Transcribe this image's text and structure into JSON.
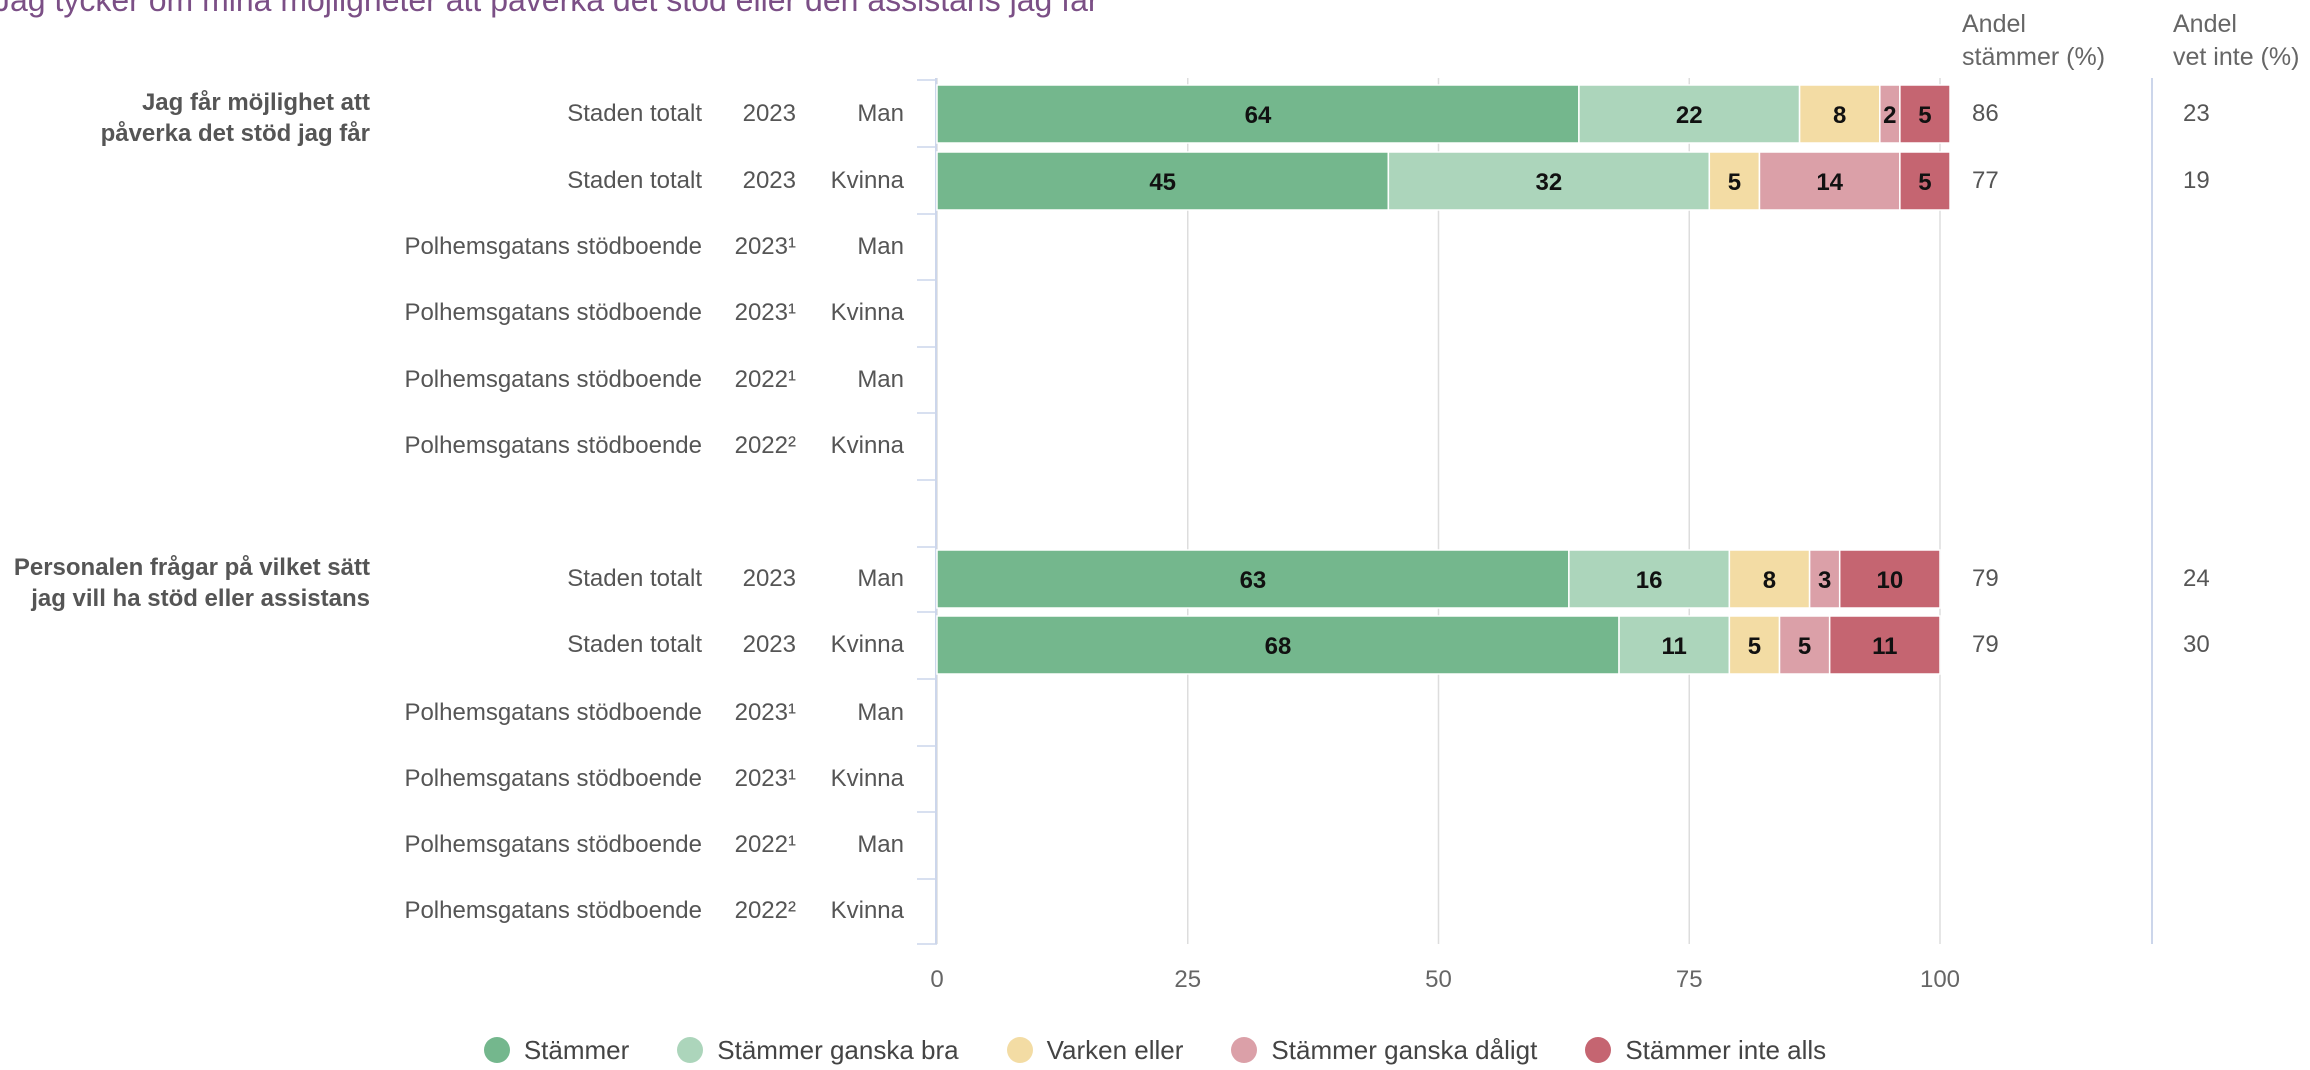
{
  "title": "Jag tycker om mina möjligheter att påverka det stöd eller den assistans jag får",
  "column_headers": {
    "stammer": [
      "Andel",
      "stämmer (%)"
    ],
    "vet_inte": [
      "Andel",
      "vet inte (%)"
    ]
  },
  "legend": [
    {
      "label": "Stämmer",
      "color": "#74b78d"
    },
    {
      "label": "Stämmer ganska bra",
      "color": "#acd5bb"
    },
    {
      "label": "Varken eller",
      "color": "#f3dca4"
    },
    {
      "label": "Stämmer ganska dåligt",
      "color": "#dba0a8"
    },
    {
      "label": "Stämmer inte alls",
      "color": "#c56571"
    }
  ],
  "chart_data": {
    "type": "bar",
    "orientation": "horizontal",
    "stacked": true,
    "xlim": [
      0,
      100
    ],
    "x_ticks": [
      "0",
      "25",
      "50",
      "75",
      "100"
    ],
    "series_names": [
      "Stämmer",
      "Stämmer ganska bra",
      "Varken eller",
      "Stämmer ganska dåligt",
      "Stämmer inte alls"
    ],
    "groups": [
      {
        "question": [
          "Jag får möjlighet att",
          "påverka det stöd jag får"
        ],
        "rows": [
          {
            "unit": "Staden totalt",
            "year": "2023",
            "gender": "Man",
            "values": [
              64,
              22,
              8,
              2,
              5
            ],
            "andel_stammer": "86",
            "andel_vet_inte": "23"
          },
          {
            "unit": "Staden totalt",
            "year": "2023",
            "gender": "Kvinna",
            "values": [
              45,
              32,
              5,
              14,
              5
            ],
            "andel_stammer": "77",
            "andel_vet_inte": "19"
          },
          {
            "unit": "Polhemsgatans stödboende",
            "year": "2023¹",
            "gender": "Man",
            "values": null,
            "andel_stammer": "",
            "andel_vet_inte": ""
          },
          {
            "unit": "Polhemsgatans stödboende",
            "year": "2023¹",
            "gender": "Kvinna",
            "values": null,
            "andel_stammer": "",
            "andel_vet_inte": ""
          },
          {
            "unit": "Polhemsgatans stödboende",
            "year": "2022¹",
            "gender": "Man",
            "values": null,
            "andel_stammer": "",
            "andel_vet_inte": ""
          },
          {
            "unit": "Polhemsgatans stödboende",
            "year": "2022²",
            "gender": "Kvinna",
            "values": null,
            "andel_stammer": "",
            "andel_vet_inte": ""
          }
        ]
      },
      {
        "question": [
          "Personalen frågar på vilket sätt",
          "jag vill ha stöd eller assistans"
        ],
        "rows": [
          {
            "unit": "Staden totalt",
            "year": "2023",
            "gender": "Man",
            "values": [
              63,
              16,
              8,
              3,
              10
            ],
            "andel_stammer": "79",
            "andel_vet_inte": "24"
          },
          {
            "unit": "Staden totalt",
            "year": "2023",
            "gender": "Kvinna",
            "values": [
              68,
              11,
              5,
              5,
              11
            ],
            "andel_stammer": "79",
            "andel_vet_inte": "30"
          },
          {
            "unit": "Polhemsgatans stödboende",
            "year": "2023¹",
            "gender": "Man",
            "values": null,
            "andel_stammer": "",
            "andel_vet_inte": ""
          },
          {
            "unit": "Polhemsgatans stödboende",
            "year": "2023¹",
            "gender": "Kvinna",
            "values": null,
            "andel_stammer": "",
            "andel_vet_inte": ""
          },
          {
            "unit": "Polhemsgatans stödboende",
            "year": "2022¹",
            "gender": "Man",
            "values": null,
            "andel_stammer": "",
            "andel_vet_inte": ""
          },
          {
            "unit": "Polhemsgatans stödboende",
            "year": "2022²",
            "gender": "Kvinna",
            "values": null,
            "andel_stammer": "",
            "andel_vet_inte": ""
          }
        ]
      }
    ]
  }
}
